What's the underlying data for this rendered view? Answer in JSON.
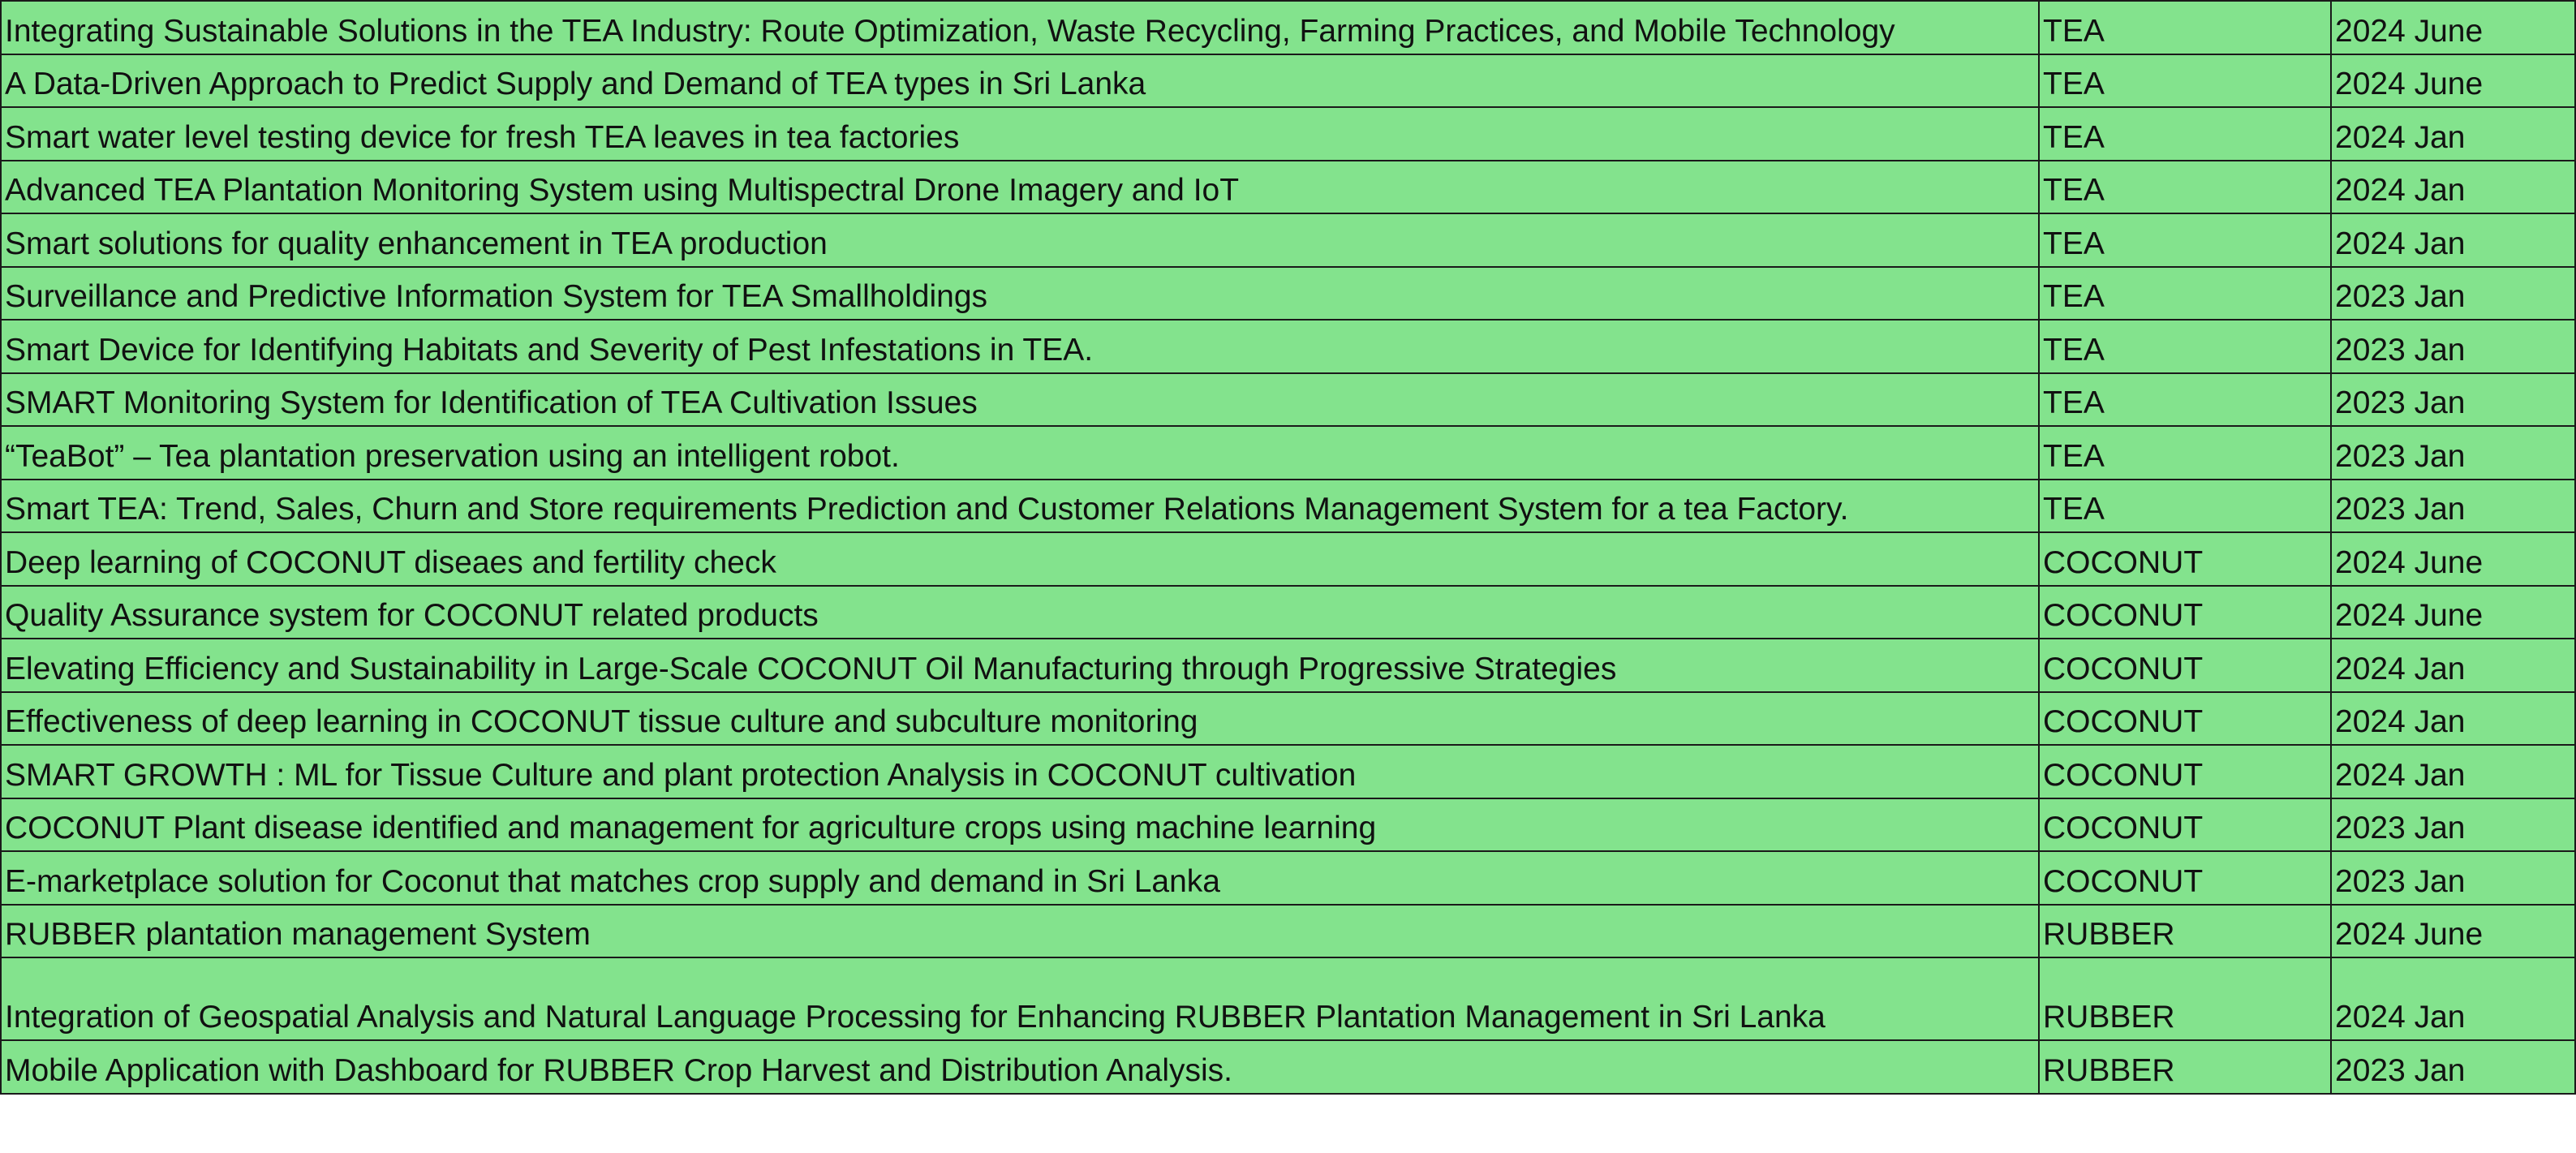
{
  "colors": {
    "cell_fill": "#83e38d",
    "grid_line": "#1a1a1a",
    "text": "#111111"
  },
  "rows": [
    {
      "title": "Integrating Sustainable Solutions in the TEA Industry: Route Optimization, Waste Recycling, Farming Practices, and Mobile Technology",
      "crop": "TEA",
      "period": "2024 June"
    },
    {
      "title": "A Data-Driven Approach to Predict Supply and Demand of TEA types in Sri Lanka",
      "crop": "TEA",
      "period": "2024 June"
    },
    {
      "title": "Smart water level testing device for fresh TEA leaves in tea factories",
      "crop": "TEA",
      "period": "2024 Jan"
    },
    {
      "title": "Advanced TEA Plantation Monitoring System using Multispectral Drone Imagery and IoT",
      "crop": "TEA",
      "period": "2024 Jan"
    },
    {
      "title": "Smart solutions for quality enhancement in TEA production",
      "crop": "TEA",
      "period": "2024 Jan"
    },
    {
      "title": "Surveillance and Predictive Information System for TEA Smallholdings",
      "crop": "TEA",
      "period": "2023 Jan"
    },
    {
      "title": "Smart Device for Identifying Habitats and Severity of Pest Infestations in TEA.",
      "crop": "TEA",
      "period": "2023 Jan"
    },
    {
      "title": "SMART Monitoring System for Identification of TEA Cultivation Issues",
      "crop": "TEA",
      "period": "2023 Jan"
    },
    {
      "title": "“TeaBot” – Tea plantation preservation using an intelligent robot.",
      "crop": "TEA",
      "period": "2023 Jan"
    },
    {
      "title": "Smart TEA: Trend, Sales, Churn and Store requirements Prediction and Customer Relations Management System for a tea Factory.",
      "crop": "TEA",
      "period": "2023 Jan"
    },
    {
      "title": "Deep learning of COCONUT diseaes and fertility check",
      "crop": "COCONUT",
      "period": "2024 June"
    },
    {
      "title": "Quality Assurance system for COCONUT related products",
      "crop": "COCONUT",
      "period": "2024 June"
    },
    {
      "title": "Elevating Efficiency and Sustainability in Large-Scale COCONUT Oil Manufacturing through Progressive Strategies",
      "crop": "COCONUT",
      "period": "2024 Jan"
    },
    {
      "title": "Effectiveness of deep learning in COCONUT tissue culture and subculture monitoring",
      "crop": "COCONUT",
      "period": "2024 Jan"
    },
    {
      "title": "SMART GROWTH : ML  for Tissue Culture and plant protection Analysis in COCONUT cultivation",
      "crop": "COCONUT",
      "period": "2024 Jan"
    },
    {
      "title": "COCONUT Plant disease identified and management for agriculture crops using machine learning",
      "crop": "COCONUT",
      "period": "2023 Jan"
    },
    {
      "title": "E-marketplace solution for Coconut that matches crop supply and demand in Sri Lanka",
      "crop": "COCONUT",
      "period": "2023 Jan"
    },
    {
      "title": "RUBBER plantation management System",
      "crop": "RUBBER",
      "period": "2024 June"
    },
    {
      "title": "Integration of Geospatial Analysis and Natural Language Processing for Enhancing RUBBER Plantation Management in Sri Lanka",
      "crop": "RUBBER",
      "period": "2024 Jan"
    },
    {
      "title": "Mobile Application with Dashboard for RUBBER Crop Harvest and Distribution Analysis.",
      "crop": "RUBBER",
      "period": "2023 Jan"
    }
  ]
}
